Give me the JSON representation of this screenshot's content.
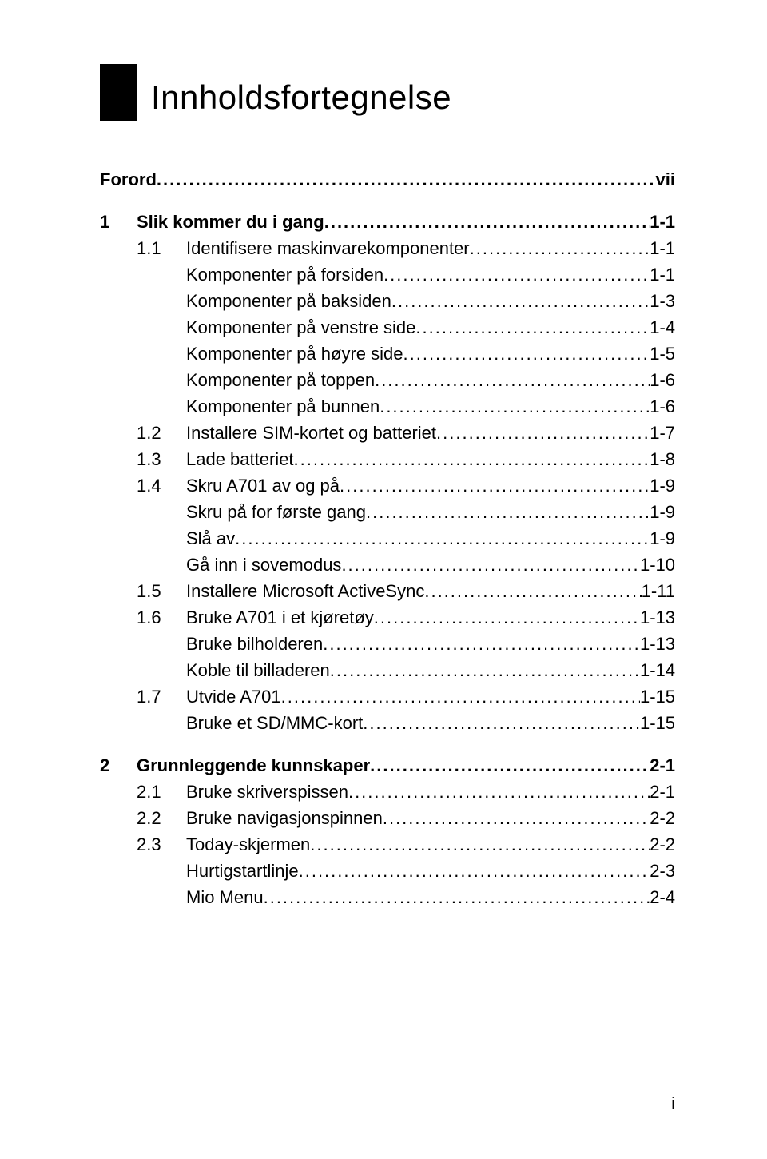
{
  "title": "Innholdsfortegnelse",
  "footer_page": "i",
  "colors": {
    "text": "#000000",
    "background": "#ffffff",
    "accent_box": "#000000"
  },
  "typography": {
    "title_fontsize": 42,
    "body_fontsize": 22,
    "font_family": "Arial, Helvetica, sans-serif"
  },
  "toc": [
    {
      "type": "line",
      "bold": true,
      "indent": 0,
      "num": "",
      "label": "Forord",
      "page": "vii"
    },
    {
      "type": "gap"
    },
    {
      "type": "line",
      "bold": true,
      "indent": 0,
      "num": "1",
      "label": "Slik kommer du i gang",
      "page": "1-1"
    },
    {
      "type": "line",
      "bold": false,
      "indent": 1,
      "num": "1.1",
      "label": "Identifisere maskinvarekomponenter",
      "page": "1-1"
    },
    {
      "type": "line",
      "bold": false,
      "indent": 2,
      "num": "",
      "label": "Komponenter på forsiden",
      "page": "1-1"
    },
    {
      "type": "line",
      "bold": false,
      "indent": 2,
      "num": "",
      "label": "Komponenter på baksiden",
      "page": "1-3"
    },
    {
      "type": "line",
      "bold": false,
      "indent": 2,
      "num": "",
      "label": "Komponenter på venstre side",
      "page": "1-4"
    },
    {
      "type": "line",
      "bold": false,
      "indent": 2,
      "num": "",
      "label": "Komponenter på høyre side",
      "page": "1-5"
    },
    {
      "type": "line",
      "bold": false,
      "indent": 2,
      "num": "",
      "label": "Komponenter på toppen",
      "page": "1-6"
    },
    {
      "type": "line",
      "bold": false,
      "indent": 2,
      "num": "",
      "label": "Komponenter på bunnen",
      "page": "1-6"
    },
    {
      "type": "line",
      "bold": false,
      "indent": 1,
      "num": "1.2",
      "label": "Installere SIM-kortet og batteriet",
      "page": "1-7"
    },
    {
      "type": "line",
      "bold": false,
      "indent": 1,
      "num": "1.3",
      "label": "Lade batteriet",
      "page": "1-8"
    },
    {
      "type": "line",
      "bold": false,
      "indent": 1,
      "num": "1.4",
      "label": "Skru A701 av og på",
      "page": "1-9"
    },
    {
      "type": "line",
      "bold": false,
      "indent": 2,
      "num": "",
      "label": "Skru på for første gang",
      "page": "1-9"
    },
    {
      "type": "line",
      "bold": false,
      "indent": 2,
      "num": "",
      "label": "Slå av",
      "page": "1-9"
    },
    {
      "type": "line",
      "bold": false,
      "indent": 2,
      "num": "",
      "label": "Gå inn i sovemodus",
      "page": "1-10"
    },
    {
      "type": "line",
      "bold": false,
      "indent": 1,
      "num": "1.5",
      "label": "Installere Microsoft ActiveSync",
      "page": "1-11"
    },
    {
      "type": "line",
      "bold": false,
      "indent": 1,
      "num": "1.6",
      "label": "Bruke A701 i et kjøretøy",
      "page": "1-13"
    },
    {
      "type": "line",
      "bold": false,
      "indent": 2,
      "num": "",
      "label": "Bruke bilholderen",
      "page": "1-13"
    },
    {
      "type": "line",
      "bold": false,
      "indent": 2,
      "num": "",
      "label": "Koble til billaderen",
      "page": "1-14"
    },
    {
      "type": "line",
      "bold": false,
      "indent": 1,
      "num": "1.7",
      "label": "Utvide A701",
      "page": "1-15"
    },
    {
      "type": "line",
      "bold": false,
      "indent": 2,
      "num": "",
      "label": "Bruke et SD/MMC-kort",
      "page": "1-15"
    },
    {
      "type": "gap"
    },
    {
      "type": "line",
      "bold": true,
      "indent": 0,
      "num": "2",
      "label": "Grunnleggende kunnskaper",
      "page": "2-1"
    },
    {
      "type": "line",
      "bold": false,
      "indent": 1,
      "num": "2.1",
      "label": "Bruke skriverspissen",
      "page": "2-1"
    },
    {
      "type": "line",
      "bold": false,
      "indent": 1,
      "num": "2.2",
      "label": "Bruke navigasjonspinnen",
      "page": "2-2"
    },
    {
      "type": "line",
      "bold": false,
      "indent": 1,
      "num": "2.3",
      "label": "Today-skjermen",
      "page": "2-2"
    },
    {
      "type": "line",
      "bold": false,
      "indent": 2,
      "num": "",
      "label": "Hurtigstartlinje",
      "page": "2-3"
    },
    {
      "type": "line",
      "bold": false,
      "indent": 2,
      "num": "",
      "label": "Mio Menu",
      "page": "2-4"
    }
  ]
}
